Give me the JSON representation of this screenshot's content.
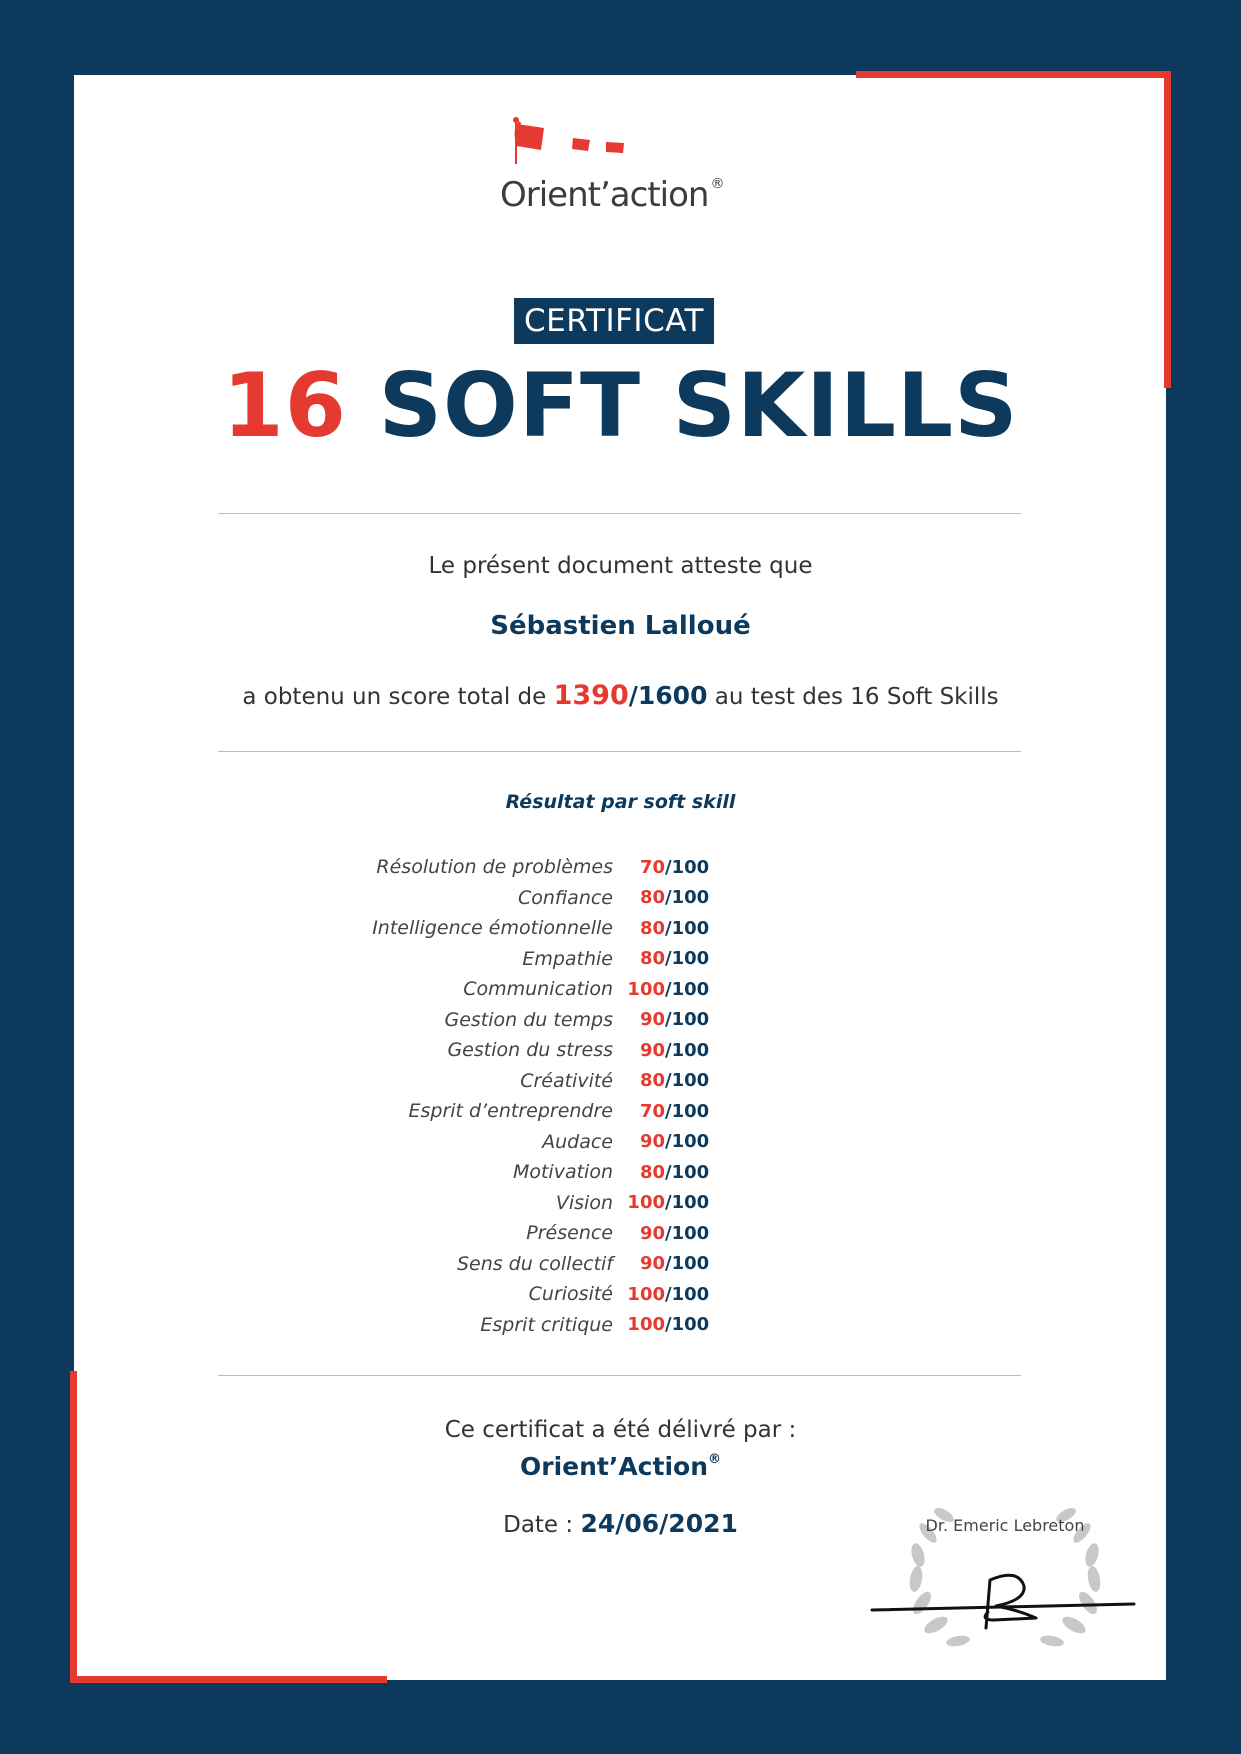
{
  "logo": {
    "name": "Orient’action",
    "registered_mark": "®",
    "accent_color": "#e43a2f",
    "text_color": "#3c3c3c"
  },
  "title": {
    "label": "CERTIFICAT",
    "number": "16",
    "subject": "SOFT SKILLS"
  },
  "attestation": {
    "intro": "Le présent document atteste que",
    "recipient": "Sébastien Lalloué",
    "score_prefix": "a obtenu un score total de",
    "score_value": "1390",
    "score_max": "/1600",
    "score_suffix": "au test des 16 Soft Skills"
  },
  "results": {
    "title": "Résultat par soft skill",
    "max_label": "/100",
    "items": [
      {
        "name": "Résolution de problèmes",
        "score": "70"
      },
      {
        "name": "Confiance",
        "score": "80"
      },
      {
        "name": "Intelligence émotionnelle",
        "score": "80"
      },
      {
        "name": "Empathie",
        "score": "80"
      },
      {
        "name": "Communication",
        "score": "100"
      },
      {
        "name": "Gestion du temps",
        "score": "90"
      },
      {
        "name": "Gestion du stress",
        "score": "90"
      },
      {
        "name": "Créativité",
        "score": "80"
      },
      {
        "name": "Esprit d’entreprendre",
        "score": "70"
      },
      {
        "name": "Audace",
        "score": "90"
      },
      {
        "name": "Motivation",
        "score": "80"
      },
      {
        "name": "Vision",
        "score": "100"
      },
      {
        "name": "Présence",
        "score": "90"
      },
      {
        "name": "Sens du collectif",
        "score": "90"
      },
      {
        "name": "Curiosité",
        "score": "100"
      },
      {
        "name": "Esprit critique",
        "score": "100"
      }
    ]
  },
  "footer": {
    "delivered_by": "Ce certificat a été délivré par :",
    "organization": "Orient’Action",
    "registered_mark": "®",
    "date_label": "Date :",
    "date_value": "24/06/2021",
    "signer": "Dr. Emeric Lebreton"
  },
  "colors": {
    "navy": "#0d3a5c",
    "red": "#e43a2f",
    "divider": "#efa8a2",
    "laurel": "#c8c8c8"
  }
}
